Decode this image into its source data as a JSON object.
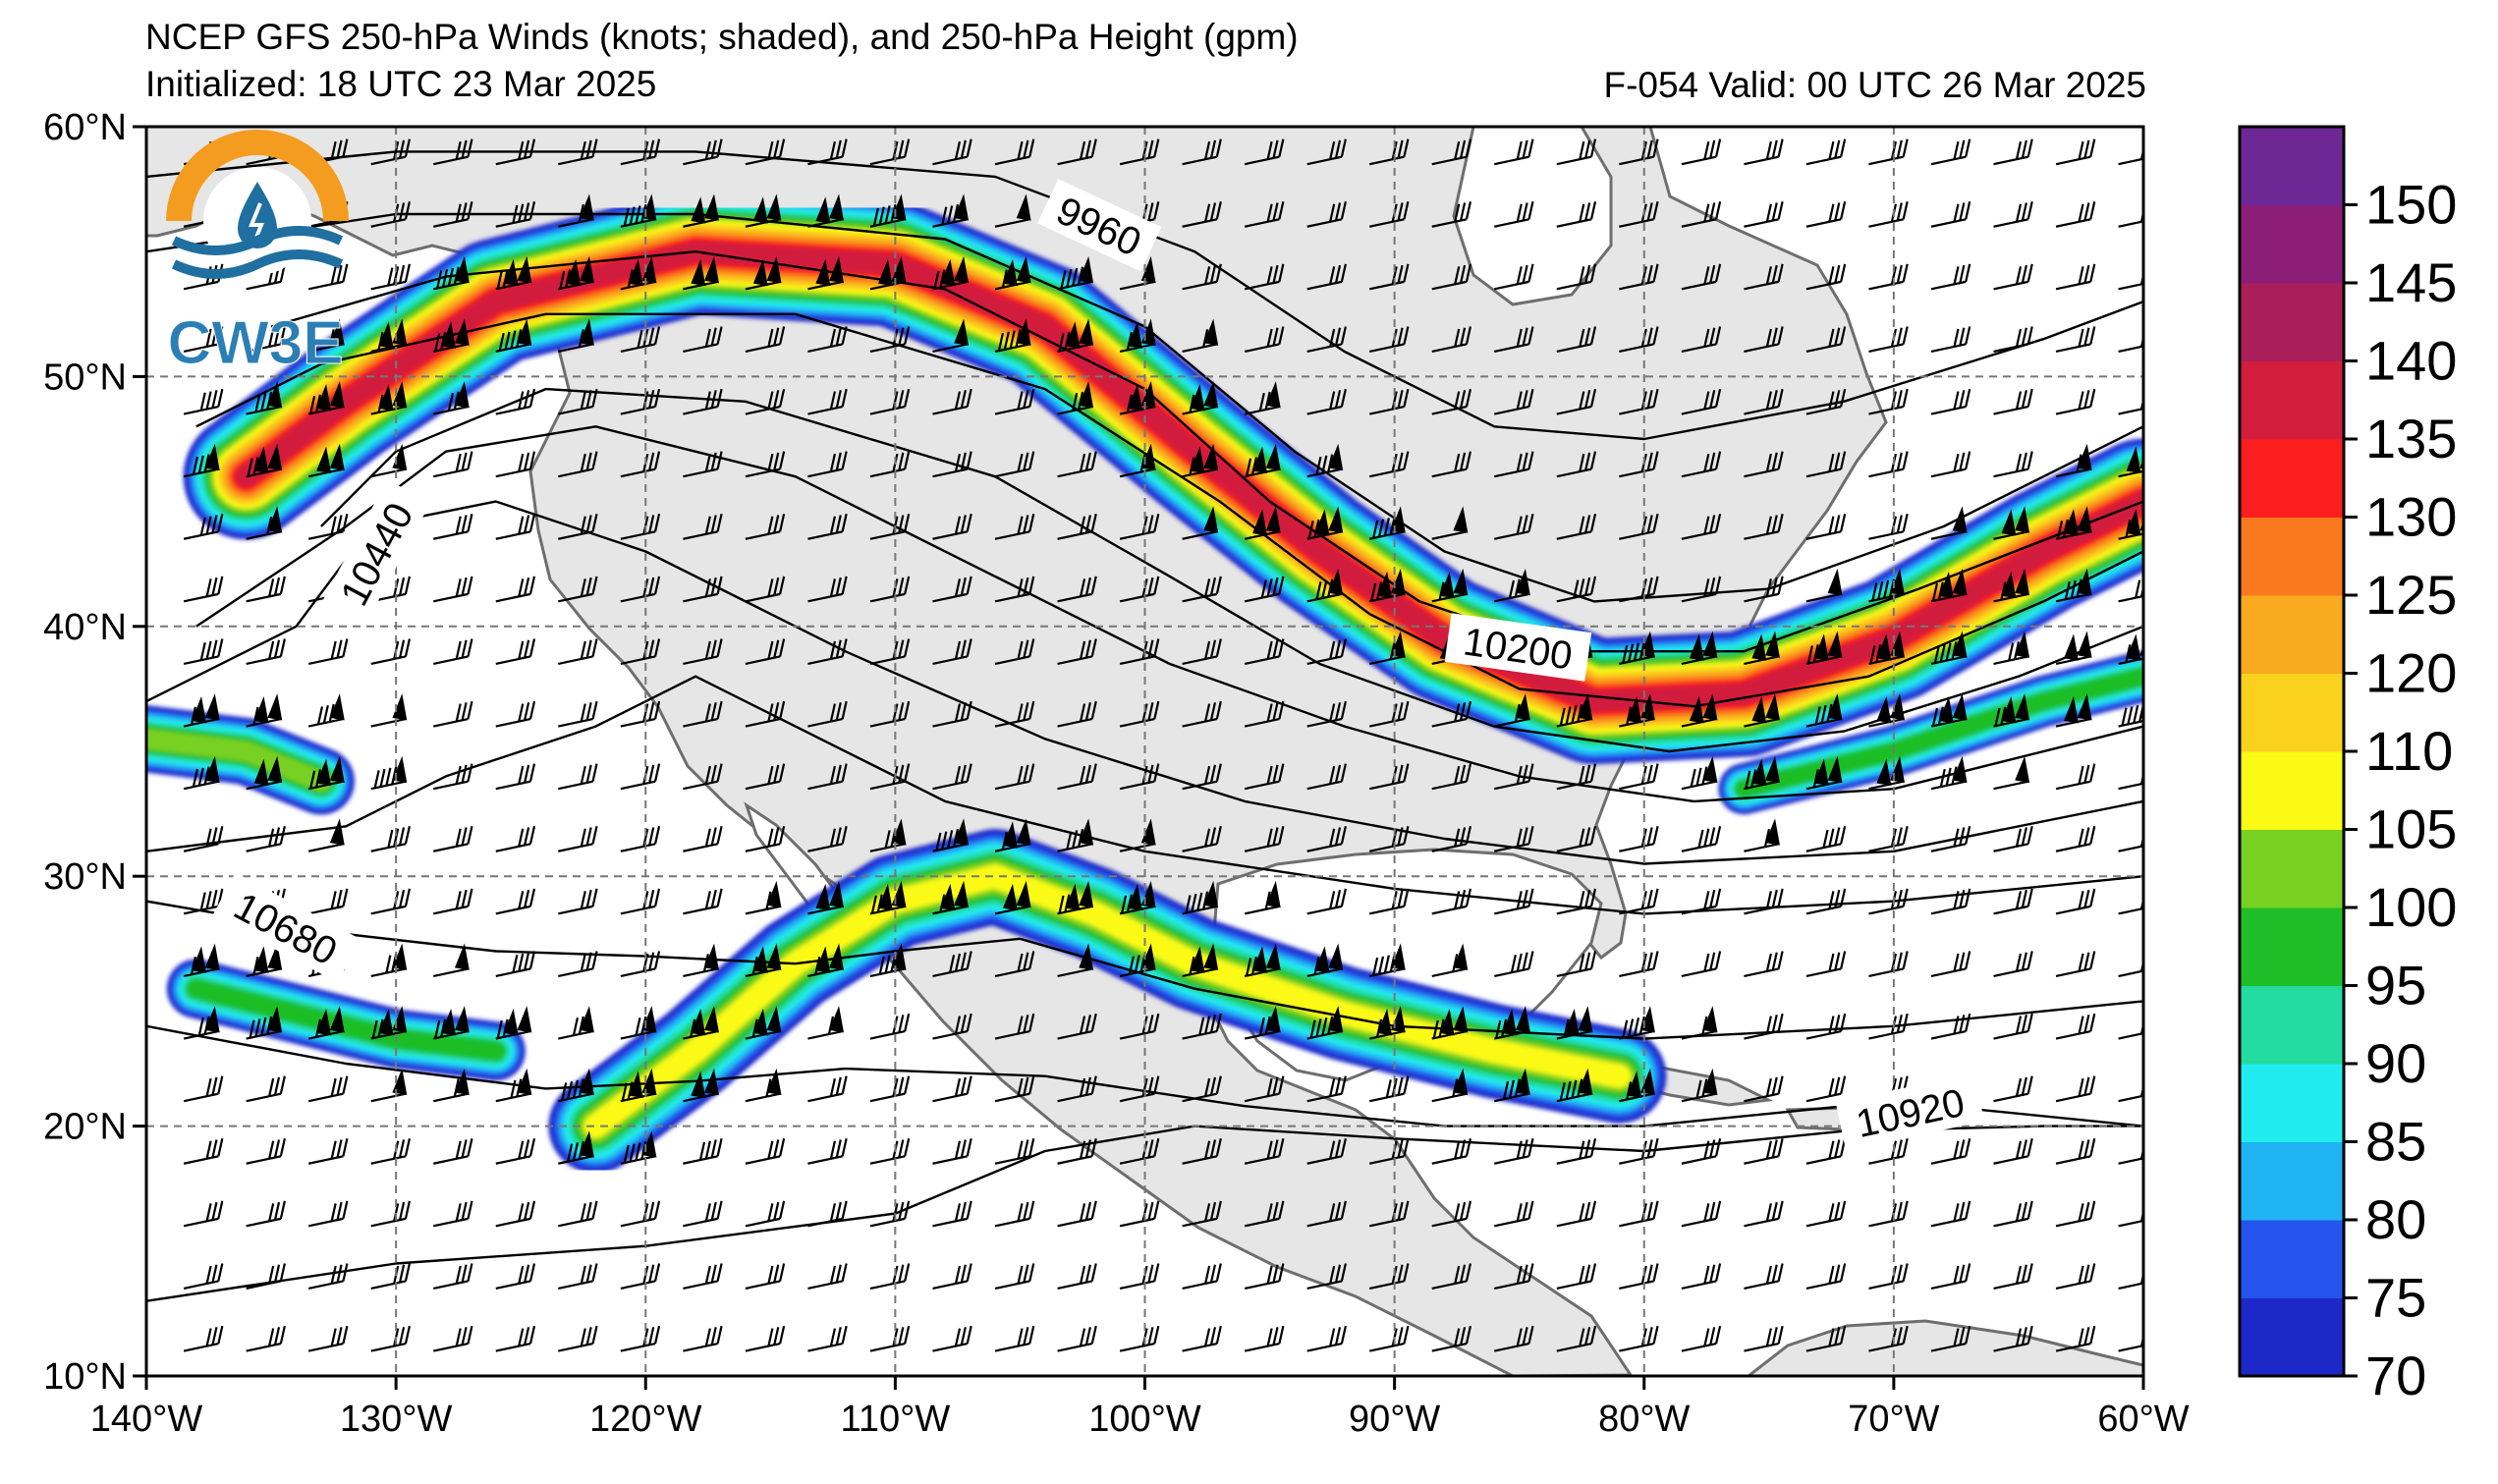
{
  "header": {
    "title": "NCEP GFS 250-hPa Winds (knots; shaded), and 250-hPa Height (gpm)",
    "initialized": "Initialized: 18 UTC 23 Mar 2025",
    "valid": "F-054  Valid: 00 UTC 26 Mar 2025"
  },
  "logo": {
    "text": "CW3E",
    "colors": {
      "sun": "#f39c1f",
      "wave": "#1f6fa0"
    }
  },
  "map": {
    "extent": {
      "lon": [
        -140,
        -60
      ],
      "lat": [
        10,
        60
      ]
    },
    "lon_ticks": [
      "140°W",
      "130°W",
      "120°W",
      "110°W",
      "100°W",
      "90°W",
      "80°W",
      "70°W",
      "60°W"
    ],
    "lat_ticks": [
      "60°N",
      "50°N",
      "40°N",
      "30°N",
      "20°N",
      "10°N"
    ],
    "land_color": "#e6e6e6",
    "coast_color": "#6e6e6e",
    "contour_labels": [
      "9960",
      "10200",
      "10440",
      "10680",
      "10920"
    ]
  },
  "colorbar": {
    "units": "knots",
    "levels": [
      "70",
      "75",
      "80",
      "85",
      "90",
      "95",
      "100",
      "105",
      "110",
      "120",
      "125",
      "130",
      "135",
      "140",
      "145",
      "150"
    ],
    "colors": [
      "#1c28c8",
      "#2454eb",
      "#20b4f4",
      "#20ecf0",
      "#22dca0",
      "#1ebe28",
      "#78d020",
      "#fafa14",
      "#fad21e",
      "#faaa1e",
      "#fa781e",
      "#fa1e1e",
      "#d21e3c",
      "#aa1e5a",
      "#8c1e78",
      "#6e2896"
    ]
  }
}
